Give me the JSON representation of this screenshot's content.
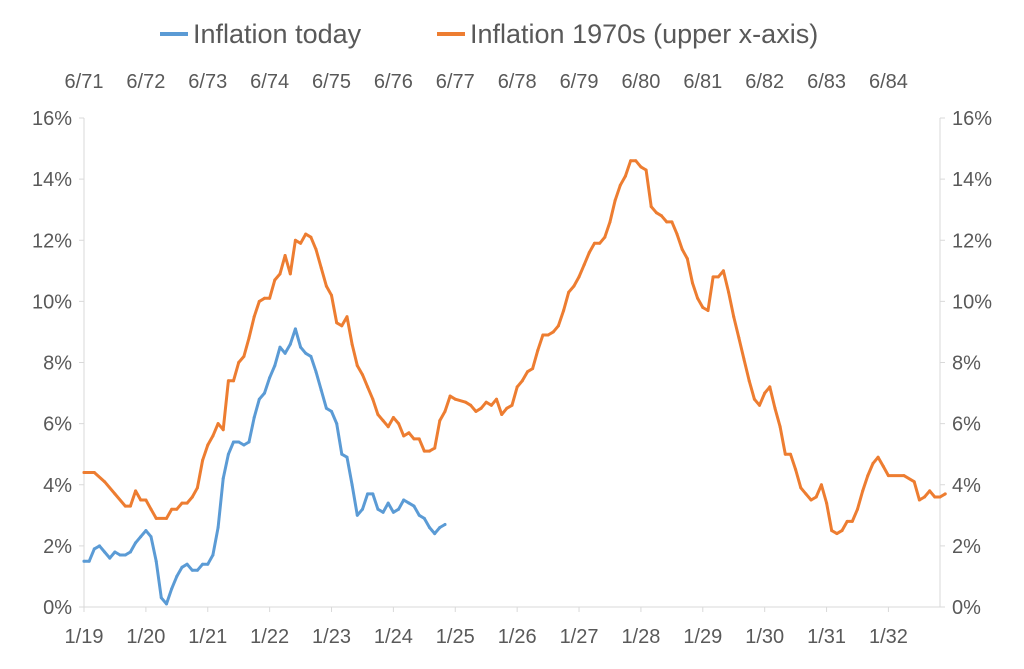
{
  "chart_data": {
    "type": "line",
    "legend": {
      "position": "top"
    },
    "grid": false,
    "y_axis": {
      "range": [
        0,
        16
      ],
      "ticks": [
        "0%",
        "2%",
        "4%",
        "6%",
        "8%",
        "10%",
        "12%",
        "14%",
        "16%"
      ],
      "tick_values": [
        0,
        2,
        4,
        6,
        8,
        10,
        12,
        14,
        16
      ]
    },
    "x_axis_bottom": {
      "range": [
        "2019-01",
        "2032-11"
      ],
      "ticks": [
        "1/19",
        "1/20",
        "1/21",
        "1/22",
        "1/23",
        "1/24",
        "1/25",
        "1/26",
        "1/27",
        "1/28",
        "1/29",
        "1/30",
        "1/31",
        "1/32"
      ]
    },
    "x_axis_top": {
      "range": [
        "1971-06",
        "1985-04"
      ],
      "ticks": [
        "6/71",
        "6/72",
        "6/73",
        "6/74",
        "6/75",
        "6/76",
        "6/77",
        "6/78",
        "6/79",
        "6/80",
        "6/81",
        "6/82",
        "6/83",
        "6/84"
      ]
    },
    "series": [
      {
        "name": "Inflation today",
        "axis": "bottom",
        "color": "#5B9BD5",
        "points": [
          [
            "2019-01",
            1.5
          ],
          [
            "2019-02",
            1.5
          ],
          [
            "2019-03",
            1.9
          ],
          [
            "2019-04",
            2.0
          ],
          [
            "2019-05",
            1.8
          ],
          [
            "2019-06",
            1.6
          ],
          [
            "2019-07",
            1.8
          ],
          [
            "2019-08",
            1.7
          ],
          [
            "2019-09",
            1.7
          ],
          [
            "2019-10",
            1.8
          ],
          [
            "2019-11",
            2.1
          ],
          [
            "2019-12",
            2.3
          ],
          [
            "2020-01",
            2.5
          ],
          [
            "2020-02",
            2.3
          ],
          [
            "2020-03",
            1.5
          ],
          [
            "2020-04",
            0.3
          ],
          [
            "2020-05",
            0.1
          ],
          [
            "2020-06",
            0.6
          ],
          [
            "2020-07",
            1.0
          ],
          [
            "2020-08",
            1.3
          ],
          [
            "2020-09",
            1.4
          ],
          [
            "2020-10",
            1.2
          ],
          [
            "2020-11",
            1.2
          ],
          [
            "2020-12",
            1.4
          ],
          [
            "2021-01",
            1.4
          ],
          [
            "2021-02",
            1.7
          ],
          [
            "2021-03",
            2.6
          ],
          [
            "2021-04",
            4.2
          ],
          [
            "2021-05",
            5.0
          ],
          [
            "2021-06",
            5.4
          ],
          [
            "2021-07",
            5.4
          ],
          [
            "2021-08",
            5.3
          ],
          [
            "2021-09",
            5.4
          ],
          [
            "2021-10",
            6.2
          ],
          [
            "2021-11",
            6.8
          ],
          [
            "2021-12",
            7.0
          ],
          [
            "2022-01",
            7.5
          ],
          [
            "2022-02",
            7.9
          ],
          [
            "2022-03",
            8.5
          ],
          [
            "2022-04",
            8.3
          ],
          [
            "2022-05",
            8.6
          ],
          [
            "2022-06",
            9.1
          ],
          [
            "2022-07",
            8.5
          ],
          [
            "2022-08",
            8.3
          ],
          [
            "2022-09",
            8.2
          ],
          [
            "2022-10",
            7.7
          ],
          [
            "2022-11",
            7.1
          ],
          [
            "2022-12",
            6.5
          ],
          [
            "2023-01",
            6.4
          ],
          [
            "2023-02",
            6.0
          ],
          [
            "2023-03",
            5.0
          ],
          [
            "2023-04",
            4.9
          ],
          [
            "2023-05",
            4.0
          ],
          [
            "2023-06",
            3.0
          ],
          [
            "2023-07",
            3.2
          ],
          [
            "2023-08",
            3.7
          ],
          [
            "2023-09",
            3.7
          ],
          [
            "2023-10",
            3.2
          ],
          [
            "2023-11",
            3.1
          ],
          [
            "2023-12",
            3.4
          ],
          [
            "2024-01",
            3.1
          ],
          [
            "2024-02",
            3.2
          ],
          [
            "2024-03",
            3.5
          ],
          [
            "2024-04",
            3.4
          ],
          [
            "2024-05",
            3.3
          ],
          [
            "2024-06",
            3.0
          ],
          [
            "2024-07",
            2.9
          ],
          [
            "2024-08",
            2.6
          ],
          [
            "2024-09",
            2.4
          ],
          [
            "2024-10",
            2.6
          ],
          [
            "2024-11",
            2.7
          ]
        ]
      },
      {
        "name": "Inflation 1970s (upper x-axis)",
        "axis": "top",
        "color": "#ED7D31",
        "points": [
          [
            "1971-06",
            4.4
          ],
          [
            "1971-08",
            4.4
          ],
          [
            "1971-10",
            4.1
          ],
          [
            "1971-12",
            3.7
          ],
          [
            "1972-02",
            3.3
          ],
          [
            "1972-03",
            3.3
          ],
          [
            "1972-04",
            3.8
          ],
          [
            "1972-05",
            3.5
          ],
          [
            "1972-06",
            3.5
          ],
          [
            "1972-07",
            3.2
          ],
          [
            "1972-08",
            2.9
          ],
          [
            "1972-10",
            2.9
          ],
          [
            "1972-11",
            3.2
          ],
          [
            "1972-12",
            3.2
          ],
          [
            "1973-01",
            3.4
          ],
          [
            "1973-02",
            3.4
          ],
          [
            "1973-03",
            3.6
          ],
          [
            "1973-04",
            3.9
          ],
          [
            "1973-05",
            4.8
          ],
          [
            "1973-06",
            5.3
          ],
          [
            "1973-07",
            5.6
          ],
          [
            "1973-08",
            6.0
          ],
          [
            "1973-09",
            5.8
          ],
          [
            "1973-10",
            7.4
          ],
          [
            "1973-11",
            7.4
          ],
          [
            "1973-12",
            8.0
          ],
          [
            "1974-01",
            8.2
          ],
          [
            "1974-02",
            8.8
          ],
          [
            "1974-03",
            9.5
          ],
          [
            "1974-04",
            10.0
          ],
          [
            "1974-05",
            10.1
          ],
          [
            "1974-06",
            10.1
          ],
          [
            "1974-07",
            10.7
          ],
          [
            "1974-08",
            10.9
          ],
          [
            "1974-09",
            11.5
          ],
          [
            "1974-10",
            10.9
          ],
          [
            "1974-11",
            12.0
          ],
          [
            "1974-12",
            11.9
          ],
          [
            "1975-01",
            12.2
          ],
          [
            "1975-02",
            12.1
          ],
          [
            "1975-03",
            11.7
          ],
          [
            "1975-04",
            11.1
          ],
          [
            "1975-05",
            10.5
          ],
          [
            "1975-06",
            10.2
          ],
          [
            "1975-07",
            9.3
          ],
          [
            "1975-08",
            9.2
          ],
          [
            "1975-09",
            9.5
          ],
          [
            "1975-10",
            8.6
          ],
          [
            "1975-11",
            7.9
          ],
          [
            "1975-12",
            7.6
          ],
          [
            "1976-01",
            7.2
          ],
          [
            "1976-02",
            6.8
          ],
          [
            "1976-03",
            6.3
          ],
          [
            "1976-04",
            6.1
          ],
          [
            "1976-05",
            5.9
          ],
          [
            "1976-06",
            6.2
          ],
          [
            "1976-07",
            6.0
          ],
          [
            "1976-08",
            5.6
          ],
          [
            "1976-09",
            5.7
          ],
          [
            "1976-10",
            5.5
          ],
          [
            "1976-11",
            5.5
          ],
          [
            "1976-12",
            5.1
          ],
          [
            "1977-01",
            5.1
          ],
          [
            "1977-02",
            5.2
          ],
          [
            "1977-03",
            6.1
          ],
          [
            "1977-04",
            6.4
          ],
          [
            "1977-05",
            6.9
          ],
          [
            "1977-06",
            6.8
          ],
          [
            "1977-08",
            6.7
          ],
          [
            "1977-09",
            6.6
          ],
          [
            "1977-10",
            6.4
          ],
          [
            "1977-11",
            6.5
          ],
          [
            "1977-12",
            6.7
          ],
          [
            "1978-01",
            6.6
          ],
          [
            "1978-02",
            6.8
          ],
          [
            "1978-03",
            6.3
          ],
          [
            "1978-04",
            6.5
          ],
          [
            "1978-05",
            6.6
          ],
          [
            "1978-06",
            7.2
          ],
          [
            "1978-07",
            7.4
          ],
          [
            "1978-08",
            7.7
          ],
          [
            "1978-09",
            7.8
          ],
          [
            "1978-10",
            8.4
          ],
          [
            "1978-11",
            8.9
          ],
          [
            "1978-12",
            8.9
          ],
          [
            "1979-01",
            9.0
          ],
          [
            "1979-02",
            9.2
          ],
          [
            "1979-03",
            9.7
          ],
          [
            "1979-04",
            10.3
          ],
          [
            "1979-05",
            10.5
          ],
          [
            "1979-06",
            10.8
          ],
          [
            "1979-07",
            11.2
          ],
          [
            "1979-08",
            11.6
          ],
          [
            "1979-09",
            11.9
          ],
          [
            "1979-10",
            11.9
          ],
          [
            "1979-11",
            12.1
          ],
          [
            "1979-12",
            12.6
          ],
          [
            "1980-01",
            13.3
          ],
          [
            "1980-02",
            13.8
          ],
          [
            "1980-03",
            14.1
          ],
          [
            "1980-04",
            14.6
          ],
          [
            "1980-05",
            14.6
          ],
          [
            "1980-06",
            14.4
          ],
          [
            "1980-07",
            14.3
          ],
          [
            "1980-08",
            13.1
          ],
          [
            "1980-09",
            12.9
          ],
          [
            "1980-10",
            12.8
          ],
          [
            "1980-11",
            12.6
          ],
          [
            "1980-12",
            12.6
          ],
          [
            "1981-01",
            12.2
          ],
          [
            "1981-02",
            11.7
          ],
          [
            "1981-03",
            11.4
          ],
          [
            "1981-04",
            10.6
          ],
          [
            "1981-05",
            10.1
          ],
          [
            "1981-06",
            9.8
          ],
          [
            "1981-07",
            9.7
          ],
          [
            "1981-08",
            10.8
          ],
          [
            "1981-09",
            10.8
          ],
          [
            "1981-10",
            11.0
          ],
          [
            "1981-11",
            10.3
          ],
          [
            "1981-12",
            9.5
          ],
          [
            "1982-01",
            8.8
          ],
          [
            "1982-02",
            8.1
          ],
          [
            "1982-03",
            7.4
          ],
          [
            "1982-04",
            6.8
          ],
          [
            "1982-05",
            6.6
          ],
          [
            "1982-06",
            7.0
          ],
          [
            "1982-07",
            7.2
          ],
          [
            "1982-08",
            6.5
          ],
          [
            "1982-09",
            5.9
          ],
          [
            "1982-10",
            5.0
          ],
          [
            "1982-11",
            5.0
          ],
          [
            "1982-12",
            4.5
          ],
          [
            "1983-01",
            3.9
          ],
          [
            "1983-02",
            3.7
          ],
          [
            "1983-03",
            3.5
          ],
          [
            "1983-04",
            3.6
          ],
          [
            "1983-05",
            4.0
          ],
          [
            "1983-06",
            3.4
          ],
          [
            "1983-07",
            2.5
          ],
          [
            "1983-08",
            2.4
          ],
          [
            "1983-09",
            2.5
          ],
          [
            "1983-10",
            2.8
          ],
          [
            "1983-11",
            2.8
          ],
          [
            "1983-12",
            3.2
          ],
          [
            "1984-01",
            3.8
          ],
          [
            "1984-02",
            4.3
          ],
          [
            "1984-03",
            4.7
          ],
          [
            "1984-04",
            4.9
          ],
          [
            "1984-05",
            4.6
          ],
          [
            "1984-06",
            4.3
          ],
          [
            "1984-09",
            4.3
          ],
          [
            "1984-11",
            4.1
          ],
          [
            "1984-12",
            3.5
          ],
          [
            "1985-01",
            3.6
          ],
          [
            "1985-02",
            3.8
          ],
          [
            "1985-03",
            3.6
          ],
          [
            "1985-04",
            3.6
          ],
          [
            "1985-05",
            3.7
          ]
        ]
      }
    ]
  }
}
